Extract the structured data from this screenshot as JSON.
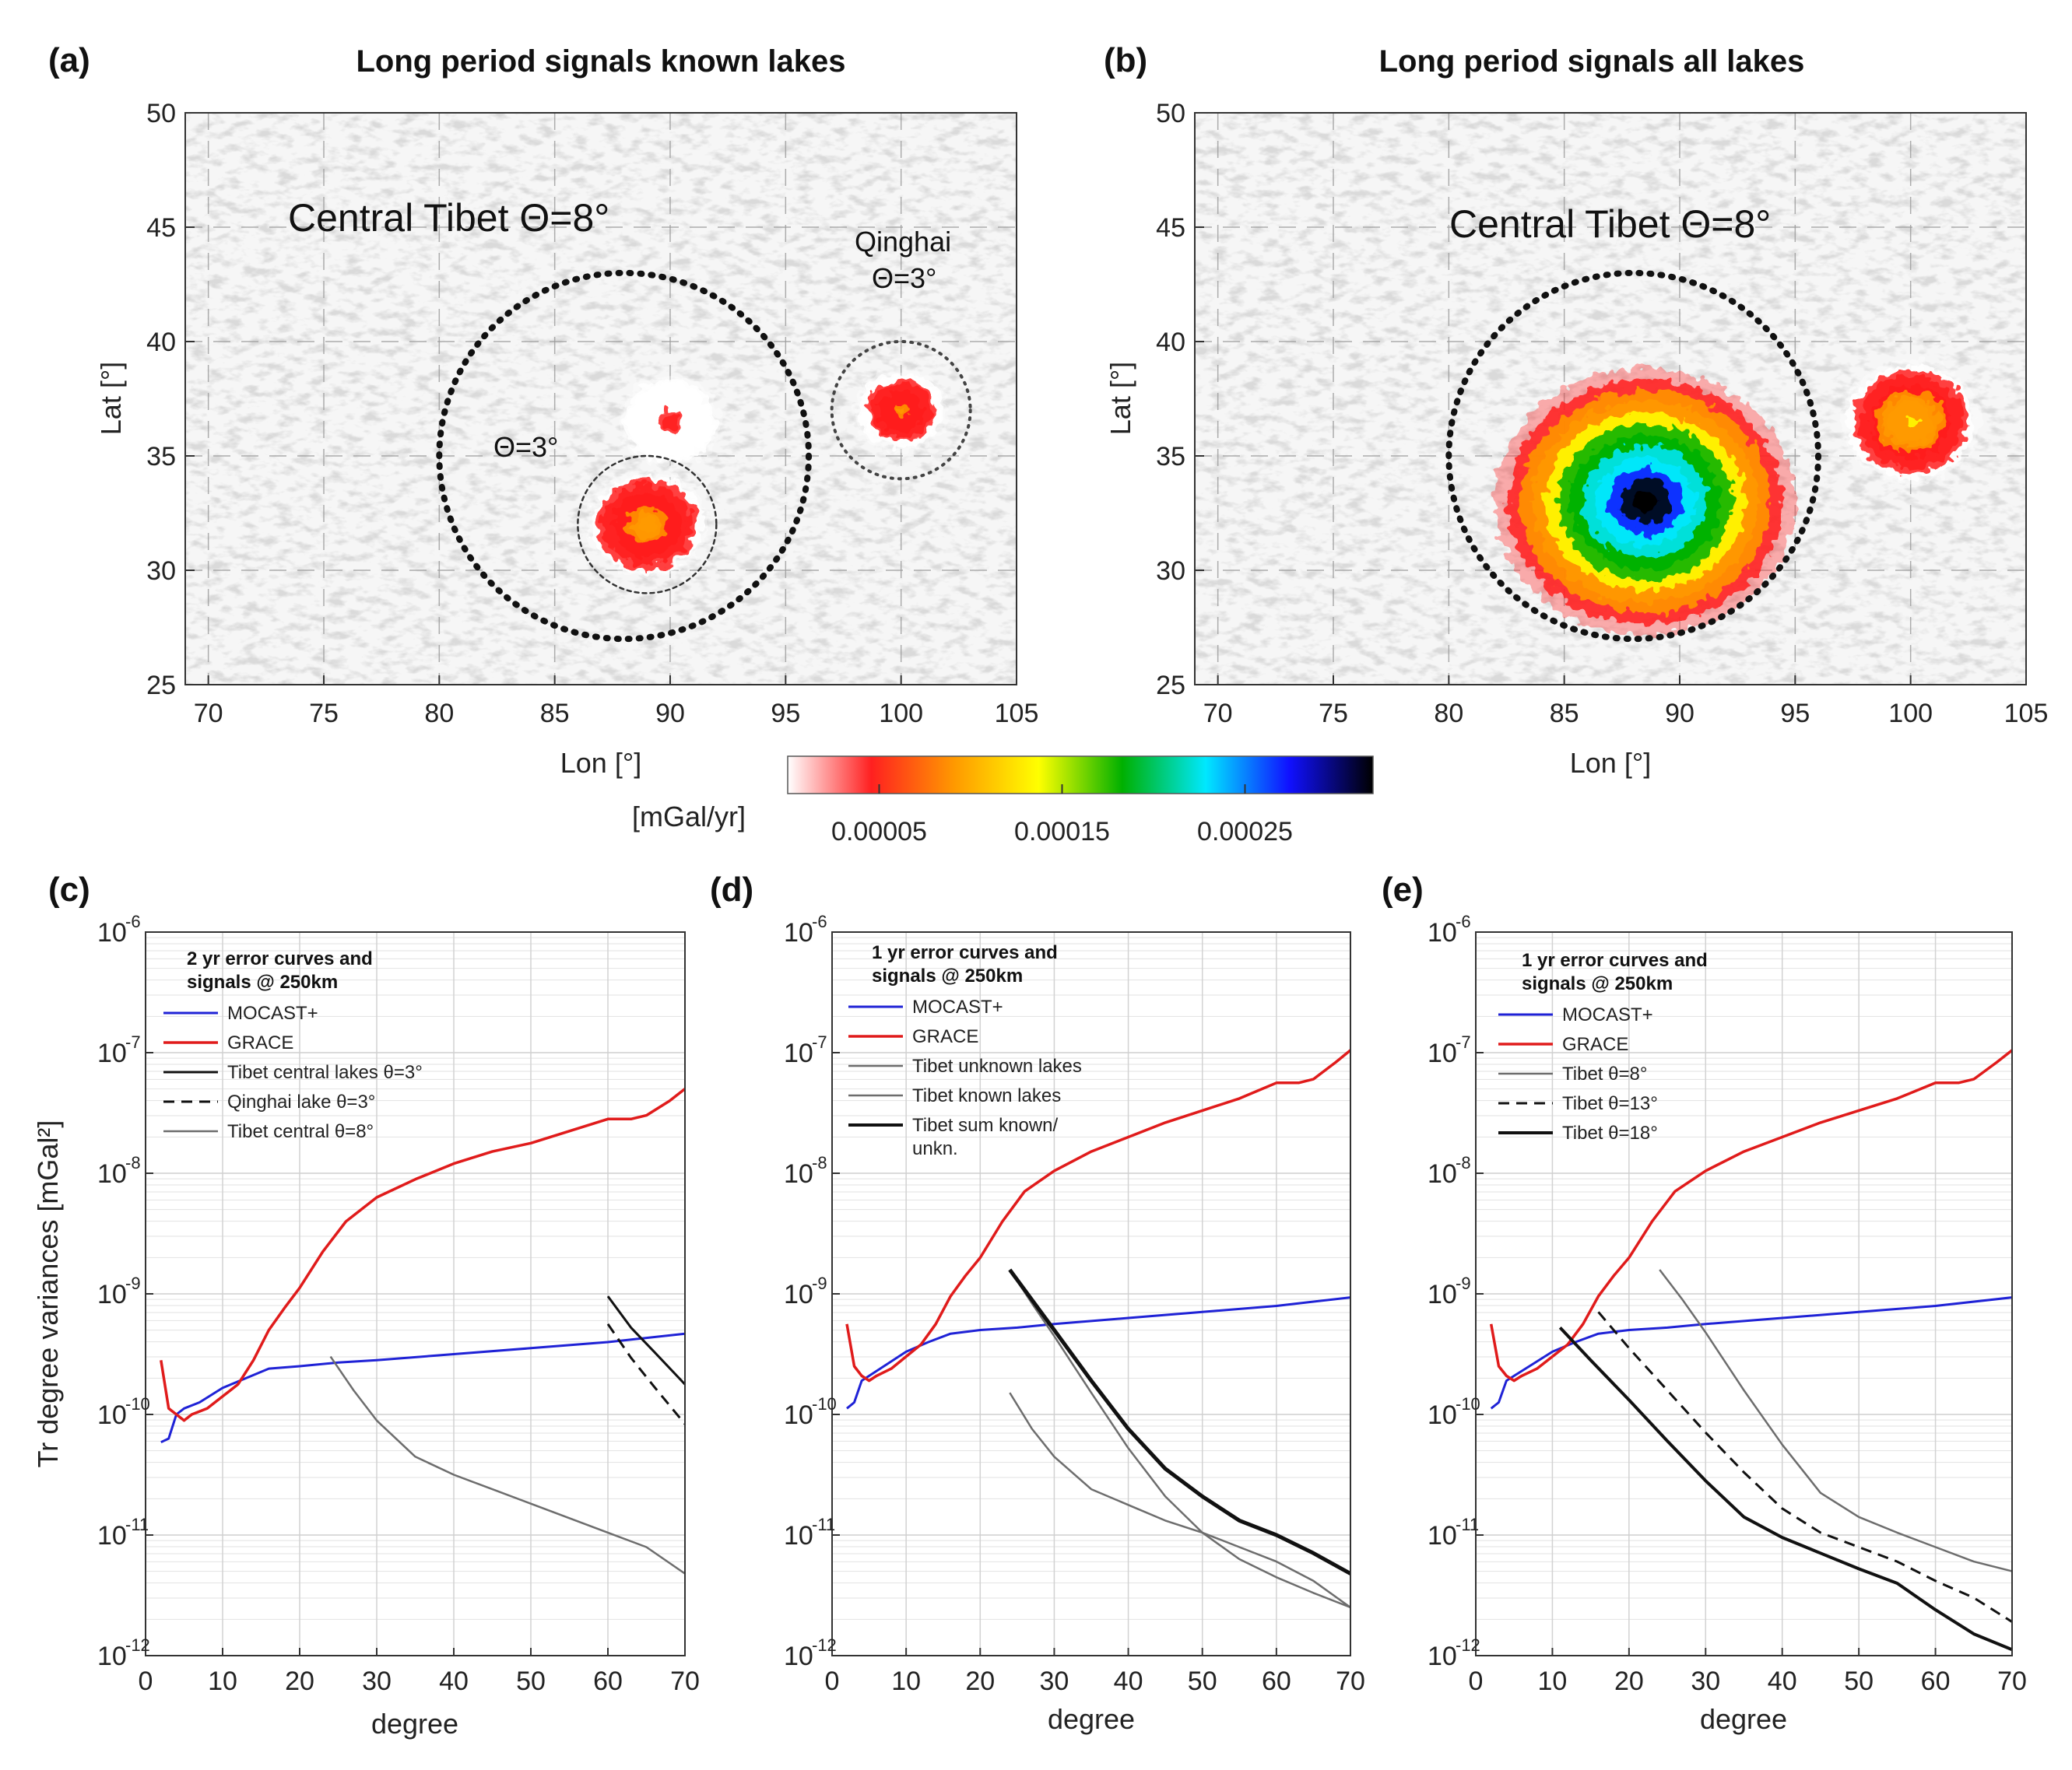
{
  "colors": {
    "mocast": "#1f22d6",
    "grace": "#e01b1b",
    "signal_dark": "#111111",
    "signal_gray": "#6d6d6d",
    "colorbar_stops": [
      "#ffffff",
      "#ff2020",
      "#ff9a00",
      "#ffff00",
      "#00b000",
      "#00e8ff",
      "#1010ff",
      "#000000"
    ]
  },
  "chart_data": [
    {
      "id": "a",
      "type": "heatmap",
      "panel_letter": "(a)",
      "title": "Long period signals known lakes",
      "xlabel": "Lon [°]",
      "ylabel": "Lat [°]",
      "xlim": [
        69,
        105
      ],
      "ylim": [
        25,
        50
      ],
      "xticks": [
        70,
        75,
        80,
        85,
        90,
        95,
        100,
        105
      ],
      "yticks": [
        25,
        30,
        35,
        40,
        45,
        50
      ],
      "grid": true,
      "annotations": [
        "Central Tibet Θ=8°",
        "Θ=3°",
        "Qinghai",
        "Θ=3°"
      ],
      "circles": [
        {
          "label": "Central Tibet Θ=8°",
          "center_lon": 88,
          "center_lat": 35,
          "radius_deg": 8,
          "style": "dotted-heavy"
        },
        {
          "label": "Θ=3°",
          "center_lon": 89,
          "center_lat": 32,
          "radius_deg": 3,
          "style": "dashed-thin"
        },
        {
          "label": "Qinghai Θ=3°",
          "center_lon": 100,
          "center_lat": 37,
          "radius_deg": 3,
          "style": "dotted-thin"
        }
      ],
      "blobs": [
        {
          "center_lon": 89,
          "center_lat": 32,
          "peak": 0.0001,
          "extent_deg": 2.6
        },
        {
          "center_lon": 90,
          "center_lat": 36.5,
          "peak": 3e-05,
          "extent_deg": 2.2
        },
        {
          "center_lon": 100,
          "center_lat": 37,
          "peak": 8e-05,
          "extent_deg": 2.0
        }
      ]
    },
    {
      "id": "b",
      "type": "heatmap",
      "panel_letter": "(b)",
      "title": "Long period signals all lakes",
      "xlabel": "Lon [°]",
      "ylabel": "Lat [°]",
      "xlim": [
        69,
        105
      ],
      "ylim": [
        25,
        50
      ],
      "xticks": [
        70,
        75,
        80,
        85,
        90,
        95,
        100,
        105
      ],
      "yticks": [
        25,
        30,
        35,
        40,
        45,
        50
      ],
      "grid": true,
      "annotations": [
        "Central Tibet Θ=8°"
      ],
      "circles": [
        {
          "label": "Central Tibet Θ=8°",
          "center_lon": 88,
          "center_lat": 35,
          "radius_deg": 8,
          "style": "dotted-heavy"
        }
      ],
      "blobs": [
        {
          "center_lon": 88.5,
          "center_lat": 33,
          "peak": 0.00033,
          "extent_deg": 6.5
        },
        {
          "center_lon": 100,
          "center_lat": 36.5,
          "peak": 0.00012,
          "extent_deg": 3.0
        }
      ]
    },
    {
      "id": "colorbar",
      "type": "colorbar",
      "label": "[mGal/yr]",
      "range": [
        0,
        0.00032
      ],
      "ticks": [
        5e-05,
        0.00015,
        0.00025
      ],
      "tick_labels": [
        "0.00005",
        "0.00015",
        "0.00025"
      ]
    },
    {
      "id": "c",
      "type": "line",
      "panel_letter": "(c)",
      "xlabel": "degree",
      "ylabel": "Tr degree variances [mGal²]",
      "xlim": [
        0,
        70
      ],
      "ylim_log10": [
        -12,
        -6
      ],
      "xticks": [
        0,
        10,
        20,
        30,
        40,
        50,
        60,
        70
      ],
      "yticks_exp": [
        -12,
        -11,
        -10,
        -9,
        -8,
        -7,
        -6
      ],
      "grid": true,
      "legend_title": "2 yr error curves and signals @ 250km",
      "series": [
        {
          "name": "MOCAST+",
          "style": "mocast",
          "width": 3,
          "x": [
            2,
            3,
            4,
            5,
            7,
            10,
            13,
            16,
            20,
            25,
            30,
            40,
            50,
            60,
            70
          ],
          "log10": [
            -10.23,
            -10.2,
            -10.0,
            -9.95,
            -9.9,
            -9.78,
            -9.7,
            -9.62,
            -9.6,
            -9.57,
            -9.55,
            -9.5,
            -9.45,
            -9.4,
            -9.33
          ]
        },
        {
          "name": "GRACE",
          "style": "grace",
          "width": 3.5,
          "x": [
            2,
            3,
            4,
            5,
            6,
            8,
            10,
            12,
            14,
            16,
            18,
            20,
            23,
            26,
            30,
            35,
            40,
            45,
            50,
            55,
            60,
            63,
            65,
            68,
            70
          ],
          "log10": [
            -9.55,
            -9.95,
            -10.0,
            -10.05,
            -10.0,
            -9.95,
            -9.85,
            -9.75,
            -9.55,
            -9.3,
            -9.12,
            -8.95,
            -8.65,
            -8.4,
            -8.2,
            -8.05,
            -7.92,
            -7.82,
            -7.75,
            -7.65,
            -7.55,
            -7.55,
            -7.52,
            -7.4,
            -7.3
          ]
        },
        {
          "name": "Tibet central lakes θ=3°",
          "style": "signal_dark",
          "width": 3,
          "x": [
            60,
            63,
            66,
            70
          ],
          "log10": [
            -9.02,
            -9.28,
            -9.48,
            -9.75
          ]
        },
        {
          "name": "Qinghai lake θ=3°",
          "style": "signal_dark",
          "dash": "14,9",
          "width": 3,
          "x": [
            60,
            63,
            66,
            70
          ],
          "log10": [
            -9.25,
            -9.53,
            -9.77,
            -10.08
          ]
        },
        {
          "name": "Tibet central θ=8°",
          "style": "signal_gray",
          "width": 2.5,
          "x": [
            24,
            27,
            30,
            35,
            40,
            45,
            50,
            55,
            60,
            65,
            70
          ],
          "log10": [
            -9.52,
            -9.8,
            -10.05,
            -10.35,
            -10.5,
            -10.62,
            -10.74,
            -10.86,
            -10.98,
            -11.1,
            -11.32
          ]
        }
      ]
    },
    {
      "id": "d",
      "type": "line",
      "panel_letter": "(d)",
      "xlabel": "degree",
      "ylabel": "",
      "xlim": [
        0,
        70
      ],
      "ylim_log10": [
        -12,
        -6
      ],
      "xticks": [
        0,
        10,
        20,
        30,
        40,
        50,
        60,
        70
      ],
      "yticks_exp": [
        -12,
        -11,
        -10,
        -9,
        -8,
        -7,
        -6
      ],
      "grid": true,
      "legend_title": "1 yr error curves and signals @ 250km",
      "series": [
        {
          "name": "MOCAST+",
          "style": "mocast",
          "width": 3,
          "x": [
            2,
            3,
            4,
            5,
            7,
            10,
            13,
            16,
            20,
            25,
            30,
            40,
            50,
            60,
            70
          ],
          "log10": [
            -9.95,
            -9.9,
            -9.72,
            -9.68,
            -9.6,
            -9.48,
            -9.4,
            -9.33,
            -9.3,
            -9.28,
            -9.25,
            -9.2,
            -9.15,
            -9.1,
            -9.03
          ]
        },
        {
          "name": "GRACE",
          "style": "grace",
          "width": 3.5,
          "x": [
            2,
            3,
            4,
            5,
            6,
            8,
            10,
            12,
            14,
            16,
            18,
            20,
            23,
            26,
            30,
            35,
            40,
            45,
            50,
            55,
            60,
            63,
            65,
            68,
            70
          ],
          "log10": [
            -9.25,
            -9.6,
            -9.68,
            -9.72,
            -9.68,
            -9.62,
            -9.52,
            -9.42,
            -9.25,
            -9.02,
            -8.85,
            -8.7,
            -8.4,
            -8.15,
            -7.98,
            -7.82,
            -7.7,
            -7.58,
            -7.48,
            -7.38,
            -7.25,
            -7.25,
            -7.22,
            -7.08,
            -6.98
          ]
        },
        {
          "name": "Tibet unknown lakes",
          "style": "signal_gray",
          "width": 2.5,
          "x": [
            24,
            27,
            30,
            35,
            40,
            45,
            50,
            55,
            60,
            65,
            70
          ],
          "log10": [
            -9.82,
            -10.12,
            -10.35,
            -10.62,
            -10.75,
            -10.88,
            -10.98,
            -11.1,
            -11.22,
            -11.38,
            -11.6
          ]
        },
        {
          "name": "Tibet known lakes",
          "style": "signal_gray",
          "width": 2.5,
          "x": [
            24,
            27,
            30,
            35,
            40,
            45,
            50,
            55,
            60,
            65,
            70
          ],
          "log10": [
            -8.8,
            -9.08,
            -9.35,
            -9.82,
            -10.28,
            -10.68,
            -10.98,
            -11.2,
            -11.35,
            -11.48,
            -11.6
          ]
        },
        {
          "name": "Tibet sum known/ unkn.",
          "style": "signal_dark",
          "width": 5,
          "x": [
            24,
            27,
            30,
            35,
            40,
            45,
            50,
            55,
            60,
            65,
            70
          ],
          "log10": [
            -8.8,
            -9.05,
            -9.3,
            -9.72,
            -10.12,
            -10.45,
            -10.68,
            -10.88,
            -11.0,
            -11.15,
            -11.32
          ]
        }
      ]
    },
    {
      "id": "e",
      "type": "line",
      "panel_letter": "(e)",
      "xlabel": "degree",
      "ylabel": "",
      "xlim": [
        0,
        70
      ],
      "ylim_log10": [
        -12,
        -6
      ],
      "xticks": [
        0,
        10,
        20,
        30,
        40,
        50,
        60,
        70
      ],
      "yticks_exp": [
        -12,
        -11,
        -10,
        -9,
        -8,
        -7,
        -6
      ],
      "grid": true,
      "legend_title": "1 yr error curves and signals @ 250km",
      "series": [
        {
          "name": "MOCAST+",
          "style": "mocast",
          "width": 3,
          "x": [
            2,
            3,
            4,
            5,
            7,
            10,
            13,
            16,
            20,
            25,
            30,
            40,
            50,
            60,
            70
          ],
          "log10": [
            -9.95,
            -9.9,
            -9.72,
            -9.68,
            -9.6,
            -9.48,
            -9.4,
            -9.33,
            -9.3,
            -9.28,
            -9.25,
            -9.2,
            -9.15,
            -9.1,
            -9.03
          ]
        },
        {
          "name": "GRACE",
          "style": "grace",
          "width": 3.5,
          "x": [
            2,
            3,
            4,
            5,
            6,
            8,
            10,
            12,
            14,
            16,
            18,
            20,
            23,
            26,
            30,
            35,
            40,
            45,
            50,
            55,
            60,
            63,
            65,
            68,
            70
          ],
          "log10": [
            -9.25,
            -9.6,
            -9.68,
            -9.72,
            -9.68,
            -9.62,
            -9.52,
            -9.42,
            -9.25,
            -9.02,
            -8.85,
            -8.7,
            -8.4,
            -8.15,
            -7.98,
            -7.82,
            -7.7,
            -7.58,
            -7.48,
            -7.38,
            -7.25,
            -7.25,
            -7.22,
            -7.08,
            -6.98
          ]
        },
        {
          "name": "Tibet θ=8°",
          "style": "signal_gray",
          "width": 2.5,
          "x": [
            24,
            27,
            30,
            35,
            40,
            45,
            50,
            55,
            60,
            65,
            70
          ],
          "log10": [
            -8.8,
            -9.05,
            -9.32,
            -9.8,
            -10.25,
            -10.65,
            -10.85,
            -10.98,
            -11.1,
            -11.22,
            -11.3
          ]
        },
        {
          "name": "Tibet θ=13°",
          "style": "signal_dark",
          "dash": "14,9",
          "width": 3,
          "x": [
            16,
            20,
            25,
            30,
            35,
            40,
            45,
            50,
            55,
            60,
            65,
            70
          ],
          "log10": [
            -9.15,
            -9.45,
            -9.8,
            -10.15,
            -10.48,
            -10.78,
            -10.98,
            -11.1,
            -11.22,
            -11.38,
            -11.52,
            -11.72
          ]
        },
        {
          "name": "Tibet θ=18°",
          "style": "signal_dark",
          "width": 4,
          "x": [
            11,
            15,
            20,
            25,
            30,
            35,
            40,
            45,
            50,
            55,
            60,
            65,
            70
          ],
          "log10": [
            -9.28,
            -9.55,
            -9.88,
            -10.22,
            -10.55,
            -10.85,
            -11.02,
            -11.15,
            -11.28,
            -11.4,
            -11.62,
            -11.82,
            -11.95
          ]
        }
      ]
    }
  ]
}
